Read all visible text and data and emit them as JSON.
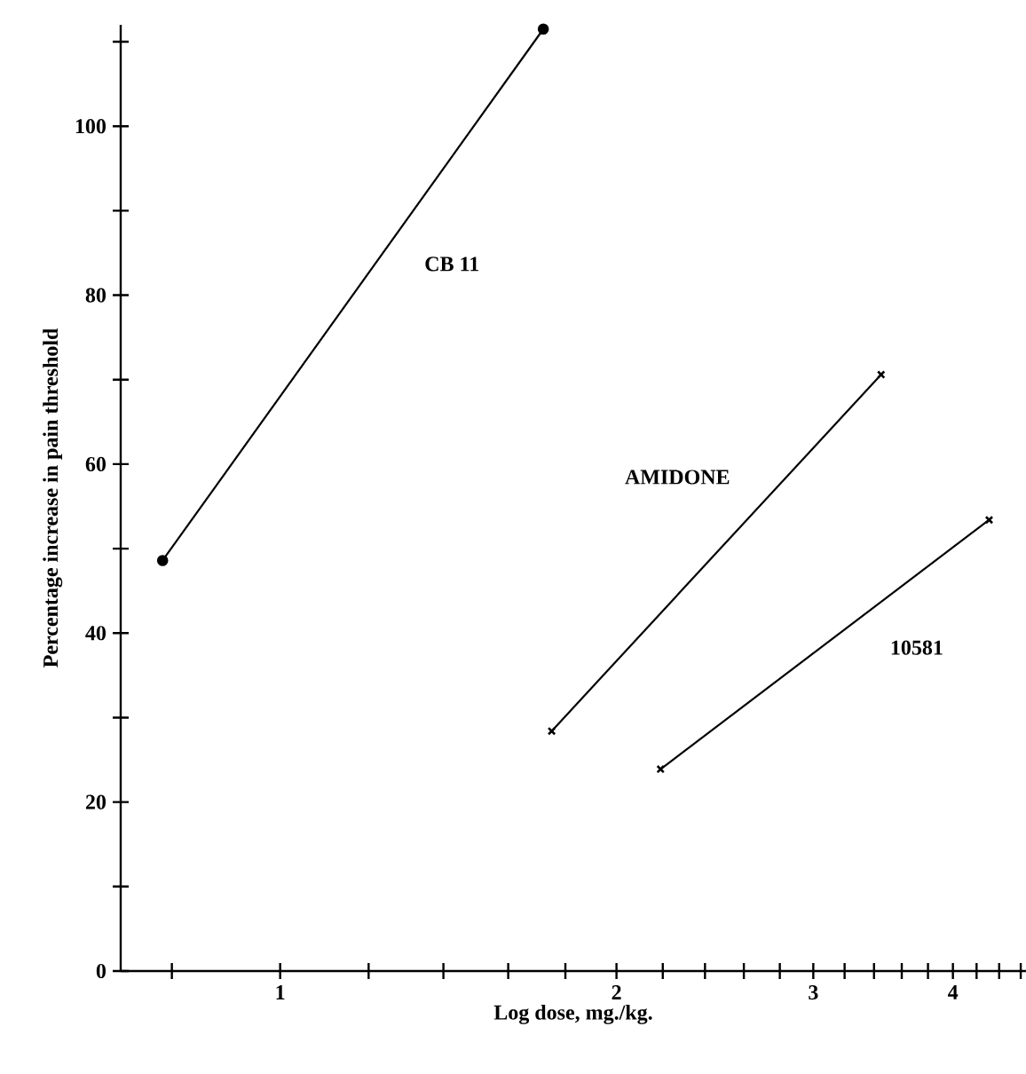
{
  "chart_data": {
    "type": "line",
    "xlabel": "Log dose, mg./kg.",
    "ylabel": "Percentage increase in pain threshold",
    "log": "x",
    "xlim": [
      0.72,
      4.65
    ],
    "ylim": [
      0,
      112
    ],
    "xticks": [
      {
        "value": 0.8,
        "label": null
      },
      1,
      {
        "value": 1.2,
        "label": null
      },
      {
        "value": 1.4,
        "label": null
      },
      {
        "value": 1.6,
        "label": null
      },
      {
        "value": 1.8,
        "label": null
      },
      2,
      {
        "value": 2.2,
        "label": null
      },
      {
        "value": 2.4,
        "label": null
      },
      {
        "value": 2.6,
        "label": null
      },
      {
        "value": 2.8,
        "label": null
      },
      3,
      {
        "value": 3.2,
        "label": null
      },
      {
        "value": 3.4,
        "label": null
      },
      {
        "value": 3.6,
        "label": null
      },
      {
        "value": 3.8,
        "label": null
      },
      4,
      {
        "value": 4.2,
        "label": null
      },
      {
        "value": 4.4,
        "label": null
      },
      {
        "value": 4.6,
        "label": null
      }
    ],
    "yticks": [
      0,
      {
        "value": 10,
        "label": null
      },
      20,
      {
        "value": 30,
        "label": null
      },
      40,
      {
        "value": 50,
        "label": null
      },
      60,
      {
        "value": 70,
        "label": null
      },
      80,
      {
        "value": 90,
        "label": null
      },
      100,
      {
        "value": 110,
        "label": null
      }
    ],
    "series": [
      {
        "name": "CB 11",
        "color": "#000000",
        "marker": "circle",
        "x": [
          0.785,
          1.72
        ],
        "values": [
          48.6,
          111.5
        ]
      },
      {
        "name": "AMIDONE",
        "color": "#000000",
        "marker": "cross",
        "x": [
          1.75,
          3.45
        ],
        "values": [
          28.4,
          70.6
        ]
      },
      {
        "name": "10581",
        "color": "#000000",
        "marker": "cross",
        "x": [
          2.19,
          4.31
        ],
        "values": [
          23.9,
          53.4
        ]
      }
    ]
  }
}
